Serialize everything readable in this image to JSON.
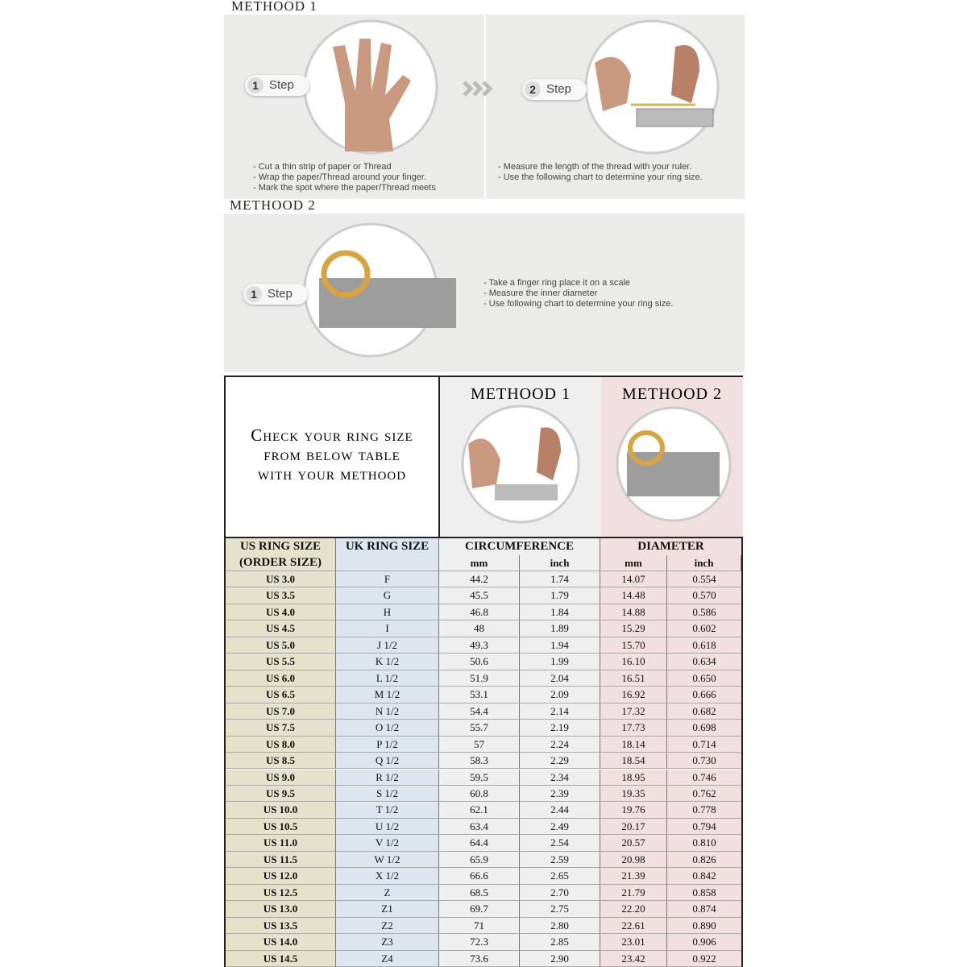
{
  "method1": {
    "title": "METHOOD 1",
    "step1": {
      "number": "1",
      "label": "Step",
      "instructions": [
        "- Cut a thin strip of paper or Thread",
        "- Wrap the paper/Thread around your finger.",
        "- Mark the spot where the paper/Thread meets"
      ]
    },
    "step2": {
      "number": "2",
      "label": "Step",
      "instructions": [
        "- Measure the length of the thread with your ruler.",
        "- Use the following chart to determine your ring size."
      ]
    }
  },
  "method2": {
    "title": "METHOOD 2",
    "step1": {
      "number": "1",
      "label": "Step",
      "instructions": [
        "- Take a finger ring place it on a scale",
        "- Measure the inner diameter",
        "- Use following chart to determine your ring size."
      ]
    }
  },
  "table": {
    "intro": [
      "Check your ring size",
      "from below table",
      "with your methood"
    ],
    "method1_title": "METHOOD 1",
    "method2_title": "METHOOD 2",
    "headers": {
      "us": [
        "US RING SIZE",
        "(ORDER SIZE)"
      ],
      "uk": "UK RING SIZE",
      "circumference": "CIRCUMFERENCE",
      "diameter": "DIAMETER",
      "units": [
        "mm",
        "inch",
        "mm",
        "inch"
      ]
    },
    "rows": [
      [
        "US 3.0",
        "F",
        "44.2",
        "1.74",
        "14.07",
        "0.554"
      ],
      [
        "US 3.5",
        "G",
        "45.5",
        "1.79",
        "14.48",
        "0.570"
      ],
      [
        "US 4.0",
        "H",
        "46.8",
        "1.84",
        "14.88",
        "0.586"
      ],
      [
        "US 4.5",
        "I",
        "48",
        "1.89",
        "15.29",
        "0.602"
      ],
      [
        "US 5.0",
        "J 1/2",
        "49.3",
        "1.94",
        "15.70",
        "0.618"
      ],
      [
        "US 5.5",
        "K 1/2",
        "50.6",
        "1.99",
        "16.10",
        "0.634"
      ],
      [
        "US 6.0",
        "L 1/2",
        "51.9",
        "2.04",
        "16.51",
        "0.650"
      ],
      [
        "US 6.5",
        "M 1/2",
        "53.1",
        "2.09",
        "16.92",
        "0.666"
      ],
      [
        "US 7.0",
        "N 1/2",
        "54.4",
        "2.14",
        "17.32",
        "0.682"
      ],
      [
        "US 7.5",
        "O 1/2",
        "55.7",
        "2.19",
        "17.73",
        "0.698"
      ],
      [
        "US 8.0",
        "P 1/2",
        "57",
        "2.24",
        "18.14",
        "0.714"
      ],
      [
        "US 8.5",
        "Q 1/2",
        "58.3",
        "2.29",
        "18.54",
        "0.730"
      ],
      [
        "US 9.0",
        "R 1/2",
        "59.5",
        "2.34",
        "18.95",
        "0.746"
      ],
      [
        "US 9.5",
        "S 1/2",
        "60.8",
        "2.39",
        "19.35",
        "0.762"
      ],
      [
        "US 10.0",
        "T 1/2",
        "62.1",
        "2.44",
        "19.76",
        "0.778"
      ],
      [
        "US 10.5",
        "U 1/2",
        "63.4",
        "2.49",
        "20.17",
        "0.794"
      ],
      [
        "US 11.0",
        "V 1/2",
        "64.4",
        "2.54",
        "20.57",
        "0.810"
      ],
      [
        "US 11.5",
        "W 1/2",
        "65.9",
        "2.59",
        "20.98",
        "0.826"
      ],
      [
        "US 12.0",
        "X 1/2",
        "66.6",
        "2.65",
        "21.39",
        "0.842"
      ],
      [
        "US 12.5",
        "Z",
        "68.5",
        "2.70",
        "21.79",
        "0.858"
      ],
      [
        "US 13.0",
        "Z1",
        "69.7",
        "2.75",
        "22.20",
        "0.874"
      ],
      [
        "US 13.5",
        "Z2",
        "71",
        "2.80",
        "22.61",
        "0.890"
      ],
      [
        "US 14.0",
        "Z3",
        "72.3",
        "2.85",
        "23.01",
        "0.906"
      ],
      [
        "US 14.5",
        "Z4",
        "73.6",
        "2.90",
        "23.42",
        "0.922"
      ]
    ]
  }
}
